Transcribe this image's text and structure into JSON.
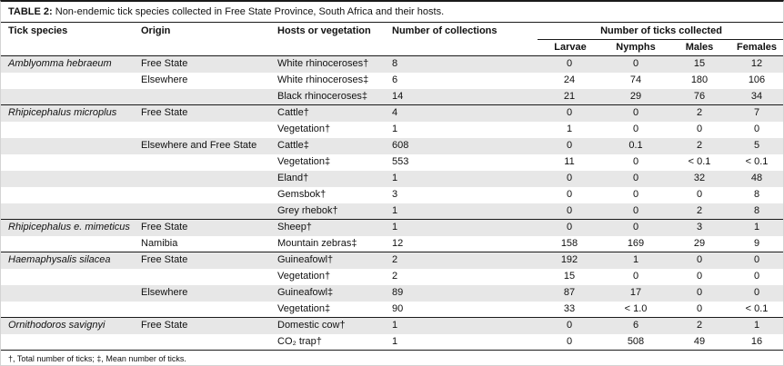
{
  "title": {
    "label": "TABLE 2:",
    "text": "Non-endemic tick species collected in Free State Province, South Africa and their hosts."
  },
  "columns": {
    "tick_species": "Tick species",
    "origin": "Origin",
    "hosts": "Hosts or vegetation",
    "collections": "Number of collections",
    "ticks_group": "Number of ticks collected",
    "sub": [
      "Larvae",
      "Nymphs",
      "Males",
      "Females"
    ]
  },
  "colors": {
    "row_shade": "#e7e7e7",
    "rule": "#1a1a1a"
  },
  "rows": [
    {
      "species": "Amblyomma hebraeum",
      "origin": "Free State",
      "host": "White rhinoceroses†",
      "collections": "8",
      "larvae": "0",
      "nymphs": "0",
      "males": "15",
      "females": "12",
      "shade": true,
      "group_start": false
    },
    {
      "species": "",
      "origin": "Elsewhere",
      "host": "White rhinoceroses‡",
      "collections": "6",
      "larvae": "24",
      "nymphs": "74",
      "males": "180",
      "females": "106",
      "shade": false,
      "group_start": false
    },
    {
      "species": "",
      "origin": "",
      "host": "Black rhinoceroses‡",
      "collections": "14",
      "larvae": "21",
      "nymphs": "29",
      "males": "76",
      "females": "34",
      "shade": true,
      "group_start": false
    },
    {
      "species": "Rhipicephalus microplus",
      "origin": "Free State",
      "host": "Cattle†",
      "collections": "4",
      "larvae": "0",
      "nymphs": "0",
      "males": "2",
      "females": "7",
      "shade": true,
      "group_start": true
    },
    {
      "species": "",
      "origin": "",
      "host": "Vegetation†",
      "collections": "1",
      "larvae": "1",
      "nymphs": "0",
      "males": "0",
      "females": "0",
      "shade": false,
      "group_start": false
    },
    {
      "species": "",
      "origin": "Elsewhere and Free State",
      "host": "Cattle‡",
      "collections": "608",
      "larvae": "0",
      "nymphs": "0.1",
      "males": "2",
      "females": "5",
      "shade": true,
      "group_start": false
    },
    {
      "species": "",
      "origin": "",
      "host": "Vegetation‡",
      "collections": "553",
      "larvae": "11",
      "nymphs": "0",
      "males": "< 0.1",
      "females": "< 0.1",
      "shade": false,
      "group_start": false
    },
    {
      "species": "",
      "origin": "",
      "host": "Eland†",
      "collections": "1",
      "larvae": "0",
      "nymphs": "0",
      "males": "32",
      "females": "48",
      "shade": true,
      "group_start": false
    },
    {
      "species": "",
      "origin": "",
      "host": "Gemsbok†",
      "collections": "3",
      "larvae": "0",
      "nymphs": "0",
      "males": "0",
      "females": "8",
      "shade": false,
      "group_start": false
    },
    {
      "species": "",
      "origin": "",
      "host": "Grey rhebok†",
      "collections": "1",
      "larvae": "0",
      "nymphs": "0",
      "males": "2",
      "females": "8",
      "shade": true,
      "group_start": false
    },
    {
      "species": "Rhipicephalus e. mimeticus",
      "origin": "Free State",
      "host": "Sheep†",
      "collections": "1",
      "larvae": "0",
      "nymphs": "0",
      "males": "3",
      "females": "1",
      "shade": true,
      "group_start": true
    },
    {
      "species": "",
      "origin": "Namibia",
      "host": "Mountain zebras‡",
      "collections": "12",
      "larvae": "158",
      "nymphs": "169",
      "males": "29",
      "females": "9",
      "shade": false,
      "group_start": false
    },
    {
      "species": "Haemaphysalis silacea",
      "origin": "Free State",
      "host": "Guineafowl†",
      "collections": "2",
      "larvae": "192",
      "nymphs": "1",
      "males": "0",
      "females": "0",
      "shade": true,
      "group_start": true
    },
    {
      "species": "",
      "origin": "",
      "host": "Vegetation†",
      "collections": "2",
      "larvae": "15",
      "nymphs": "0",
      "males": "0",
      "females": "0",
      "shade": false,
      "group_start": false
    },
    {
      "species": "",
      "origin": "Elsewhere",
      "host": "Guineafowl‡",
      "collections": "89",
      "larvae": "87",
      "nymphs": "17",
      "males": "0",
      "females": "0",
      "shade": true,
      "group_start": false
    },
    {
      "species": "",
      "origin": "",
      "host": "Vegetation‡",
      "collections": "90",
      "larvae": "33",
      "nymphs": "< 1.0",
      "males": "0",
      "females": "< 0.1",
      "shade": false,
      "group_start": false
    },
    {
      "species": "Ornithodoros savignyi",
      "origin": "Free State",
      "host": "Domestic cow†",
      "collections": "1",
      "larvae": "0",
      "nymphs": "6",
      "males": "2",
      "females": "1",
      "shade": true,
      "group_start": true
    },
    {
      "species": "",
      "origin": "",
      "host": "CO₂ trap†",
      "collections": "1",
      "larvae": "0",
      "nymphs": "508",
      "males": "49",
      "females": "16",
      "shade": false,
      "group_start": false
    }
  ],
  "footnote": "†, Total number of ticks; ‡, Mean number of ticks."
}
